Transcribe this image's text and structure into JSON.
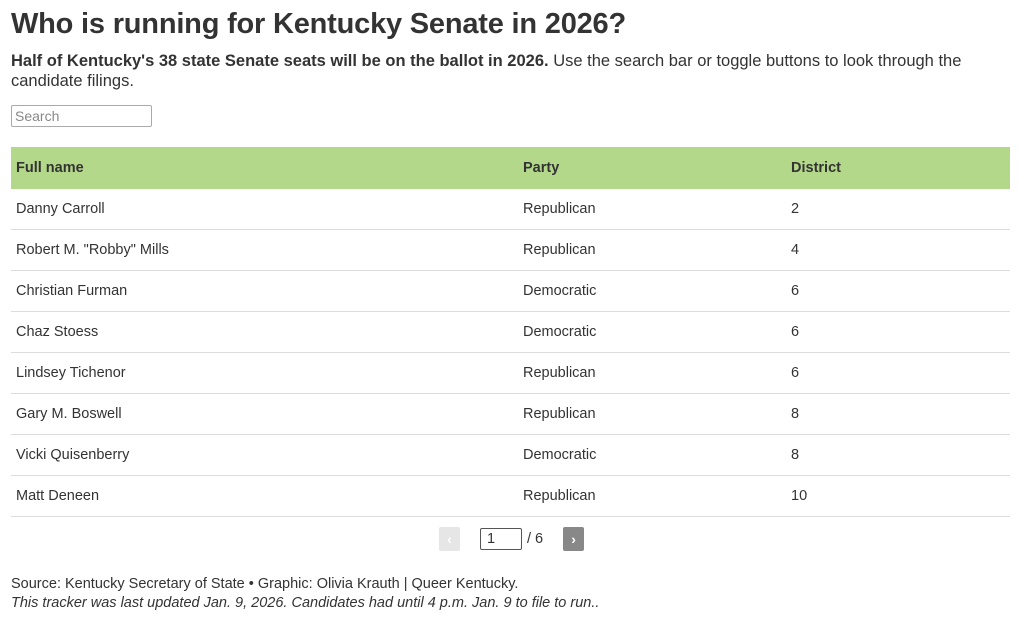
{
  "header": {
    "title": "Who is running for Kentucky Senate in 2026?",
    "subtitle_bold": "Half of Kentucky's 38 state Senate seats will be on the ballot in 2026.",
    "subtitle_rest": "Use the search bar or toggle buttons to look through the candidate filings."
  },
  "search": {
    "placeholder": "Search"
  },
  "table": {
    "columns": [
      "Full name",
      "Party",
      "District"
    ],
    "rows": [
      [
        "Danny Carroll",
        "Republican",
        2
      ],
      [
        "Robert M. \"Robby\" Mills",
        "Republican",
        4
      ],
      [
        "Christian Furman",
        "Democratic",
        6
      ],
      [
        "Chaz Stoess",
        "Democratic",
        6
      ],
      [
        "Lindsey Tichenor",
        "Republican",
        6
      ],
      [
        "Gary M. Boswell",
        "Republican",
        8
      ],
      [
        "Vicki Quisenberry",
        "Democratic",
        8
      ],
      [
        "Matt Deneen",
        "Republican",
        10
      ]
    ]
  },
  "pagination": {
    "prev": "‹",
    "page": 1,
    "of": "/ 6",
    "next": "›"
  },
  "footer": {
    "source": "Source: Kentucky Secretary of State • Graphic: Olivia Krauth | Queer Kentucky.",
    "note": "This tracker was last updated Jan. 9, 2026. Candidates had until 4 p.m. Jan. 9 to file to run.."
  }
}
